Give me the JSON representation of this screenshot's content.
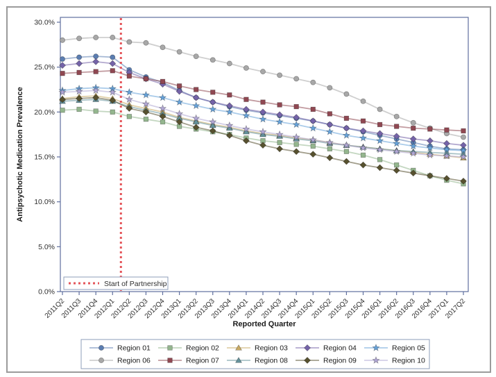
{
  "chart_data": {
    "type": "line",
    "title": "",
    "xlabel": "Reported Quarter",
    "ylabel": "Antipsychotic Medication Prevalence",
    "ylim": [
      0,
      30
    ],
    "yticks": [
      "0.0%",
      "5.0%",
      "10.0%",
      "15.0%",
      "20.0%",
      "25.0%",
      "30.0%"
    ],
    "ytick_values": [
      0,
      5,
      10,
      15,
      20,
      25,
      30
    ],
    "grid": false,
    "legend_position": "bottom",
    "categories": [
      "2011Q2",
      "2011Q3",
      "2011Q4",
      "2012Q1",
      "2012Q2",
      "2012Q3",
      "2012Q4",
      "2013Q1",
      "2013Q2",
      "2013Q3",
      "2013Q4",
      "2014Q1",
      "2014Q2",
      "2014Q3",
      "2014Q4",
      "2015Q1",
      "2015Q2",
      "2015Q3",
      "2015Q4",
      "2016Q1",
      "2016Q2",
      "2016Q3",
      "2016Q4",
      "2017Q1",
      "2017Q2"
    ],
    "series": [
      {
        "name": "Region 01",
        "marker": "circle",
        "color": "#5b7db1",
        "values": [
          25.9,
          26.1,
          26.2,
          26.1,
          24.7,
          23.9,
          23.3,
          22.4,
          21.6,
          21.1,
          20.6,
          20.2,
          19.9,
          19.6,
          19.3,
          19.0,
          18.6,
          18.2,
          17.8,
          17.4,
          17.0,
          16.6,
          16.2,
          15.9,
          15.8
        ]
      },
      {
        "name": "Region 02",
        "marker": "square",
        "color": "#94b68e",
        "values": [
          20.2,
          20.3,
          20.1,
          20.0,
          19.5,
          19.2,
          18.9,
          18.4,
          18.1,
          17.8,
          17.5,
          17.1,
          16.8,
          16.6,
          16.4,
          16.2,
          15.9,
          15.6,
          15.2,
          14.7,
          14.1,
          13.5,
          12.9,
          12.4,
          12.0
        ]
      },
      {
        "name": "Region 03",
        "marker": "triangle",
        "color": "#c9aa63",
        "values": [
          21.5,
          21.7,
          21.8,
          21.5,
          20.8,
          20.4,
          20.0,
          19.4,
          19.0,
          18.6,
          18.3,
          17.9,
          17.6,
          17.4,
          17.1,
          16.9,
          16.6,
          16.3,
          16.1,
          15.9,
          15.7,
          15.5,
          15.3,
          15.1,
          14.9
        ]
      },
      {
        "name": "Region 04",
        "marker": "diamond",
        "color": "#7463a8",
        "values": [
          25.2,
          25.4,
          25.6,
          25.4,
          24.4,
          23.7,
          23.1,
          22.3,
          21.6,
          21.1,
          20.7,
          20.3,
          20.0,
          19.7,
          19.4,
          19.0,
          18.6,
          18.2,
          17.9,
          17.6,
          17.3,
          17.0,
          16.8,
          16.5,
          16.3
        ]
      },
      {
        "name": "Region 05",
        "marker": "star",
        "color": "#66a2d9",
        "values": [
          22.4,
          22.6,
          22.7,
          22.6,
          22.2,
          21.9,
          21.6,
          21.1,
          20.7,
          20.3,
          20.0,
          19.6,
          19.2,
          18.9,
          18.6,
          18.2,
          17.8,
          17.4,
          17.1,
          16.8,
          16.5,
          16.2,
          16.0,
          15.8,
          15.7
        ]
      },
      {
        "name": "Region 06",
        "marker": "circle",
        "color": "#a8a8a8",
        "values": [
          28.0,
          28.2,
          28.3,
          28.3,
          27.8,
          27.7,
          27.2,
          26.7,
          26.2,
          25.8,
          25.4,
          24.9,
          24.5,
          24.1,
          23.7,
          23.3,
          22.7,
          22.0,
          21.2,
          20.3,
          19.5,
          18.8,
          18.2,
          17.6,
          17.2
        ]
      },
      {
        "name": "Region 07",
        "marker": "square",
        "color": "#904852",
        "values": [
          24.3,
          24.4,
          24.5,
          24.6,
          24.0,
          23.7,
          23.4,
          22.9,
          22.5,
          22.2,
          21.9,
          21.4,
          21.1,
          20.8,
          20.6,
          20.3,
          19.8,
          19.3,
          19.0,
          18.6,
          18.4,
          18.2,
          18.1,
          18.0,
          17.9
        ]
      },
      {
        "name": "Region 08",
        "marker": "triangle",
        "color": "#64919b",
        "values": [
          21.2,
          21.3,
          21.4,
          21.2,
          20.6,
          20.2,
          19.8,
          19.3,
          18.9,
          18.5,
          18.2,
          17.8,
          17.5,
          17.3,
          17.0,
          16.8,
          16.5,
          16.3,
          16.1,
          15.9,
          15.7,
          15.6,
          15.5,
          15.4,
          15.3
        ]
      },
      {
        "name": "Region 09",
        "marker": "diamond",
        "color": "#57512f",
        "values": [
          21.4,
          21.5,
          21.6,
          21.3,
          20.4,
          20.0,
          19.5,
          18.9,
          18.3,
          17.9,
          17.4,
          16.8,
          16.3,
          15.9,
          15.6,
          15.3,
          14.9,
          14.5,
          14.1,
          13.8,
          13.5,
          13.2,
          12.9,
          12.6,
          12.3
        ]
      },
      {
        "name": "Region 10",
        "marker": "star",
        "color": "#b1a7d4",
        "values": [
          22.2,
          22.3,
          22.4,
          22.2,
          21.4,
          20.9,
          20.4,
          19.8,
          19.3,
          18.9,
          18.5,
          18.1,
          17.8,
          17.5,
          17.2,
          16.9,
          16.6,
          16.3,
          16.0,
          15.8,
          15.6,
          15.4,
          15.2,
          15.1,
          15.0
        ]
      }
    ],
    "reference_line": {
      "label": "Start of Partnership",
      "orientation": "vertical",
      "position_index": 3.5,
      "between": [
        "2012Q1",
        "2012Q2"
      ],
      "color": "#e4555a",
      "style": "dotted"
    },
    "colors": {
      "axis_border": "#5f6f9e",
      "tick_text": "#2f2f2f",
      "axis_title_text": "#1a1a1a",
      "legend_border": "#8d9cba",
      "outer_frame": "#9b9b9b"
    }
  }
}
